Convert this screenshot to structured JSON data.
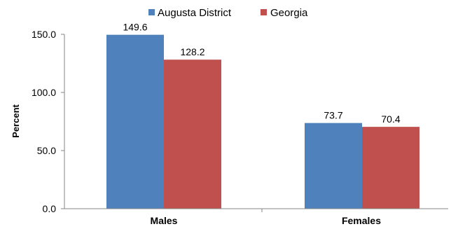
{
  "chart_data": {
    "type": "bar",
    "title": "",
    "xlabel": "",
    "ylabel": "Percent",
    "ylim": [
      0,
      150
    ],
    "y_ticks": [
      "0.0",
      "50.0",
      "100.0",
      "150.0"
    ],
    "y_tick_values": [
      0,
      50,
      100,
      150
    ],
    "categories": [
      "Males",
      "Females"
    ],
    "legend_position": "top",
    "grid": false,
    "series": [
      {
        "name": "Augusta District",
        "color": "#4f81bd",
        "values": [
          149.6,
          73.7
        ],
        "labels": [
          "149.6",
          "73.7"
        ]
      },
      {
        "name": "Georgia",
        "color": "#c0504d",
        "values": [
          128.2,
          70.4
        ],
        "labels": [
          "128.2",
          "70.4"
        ]
      }
    ]
  }
}
